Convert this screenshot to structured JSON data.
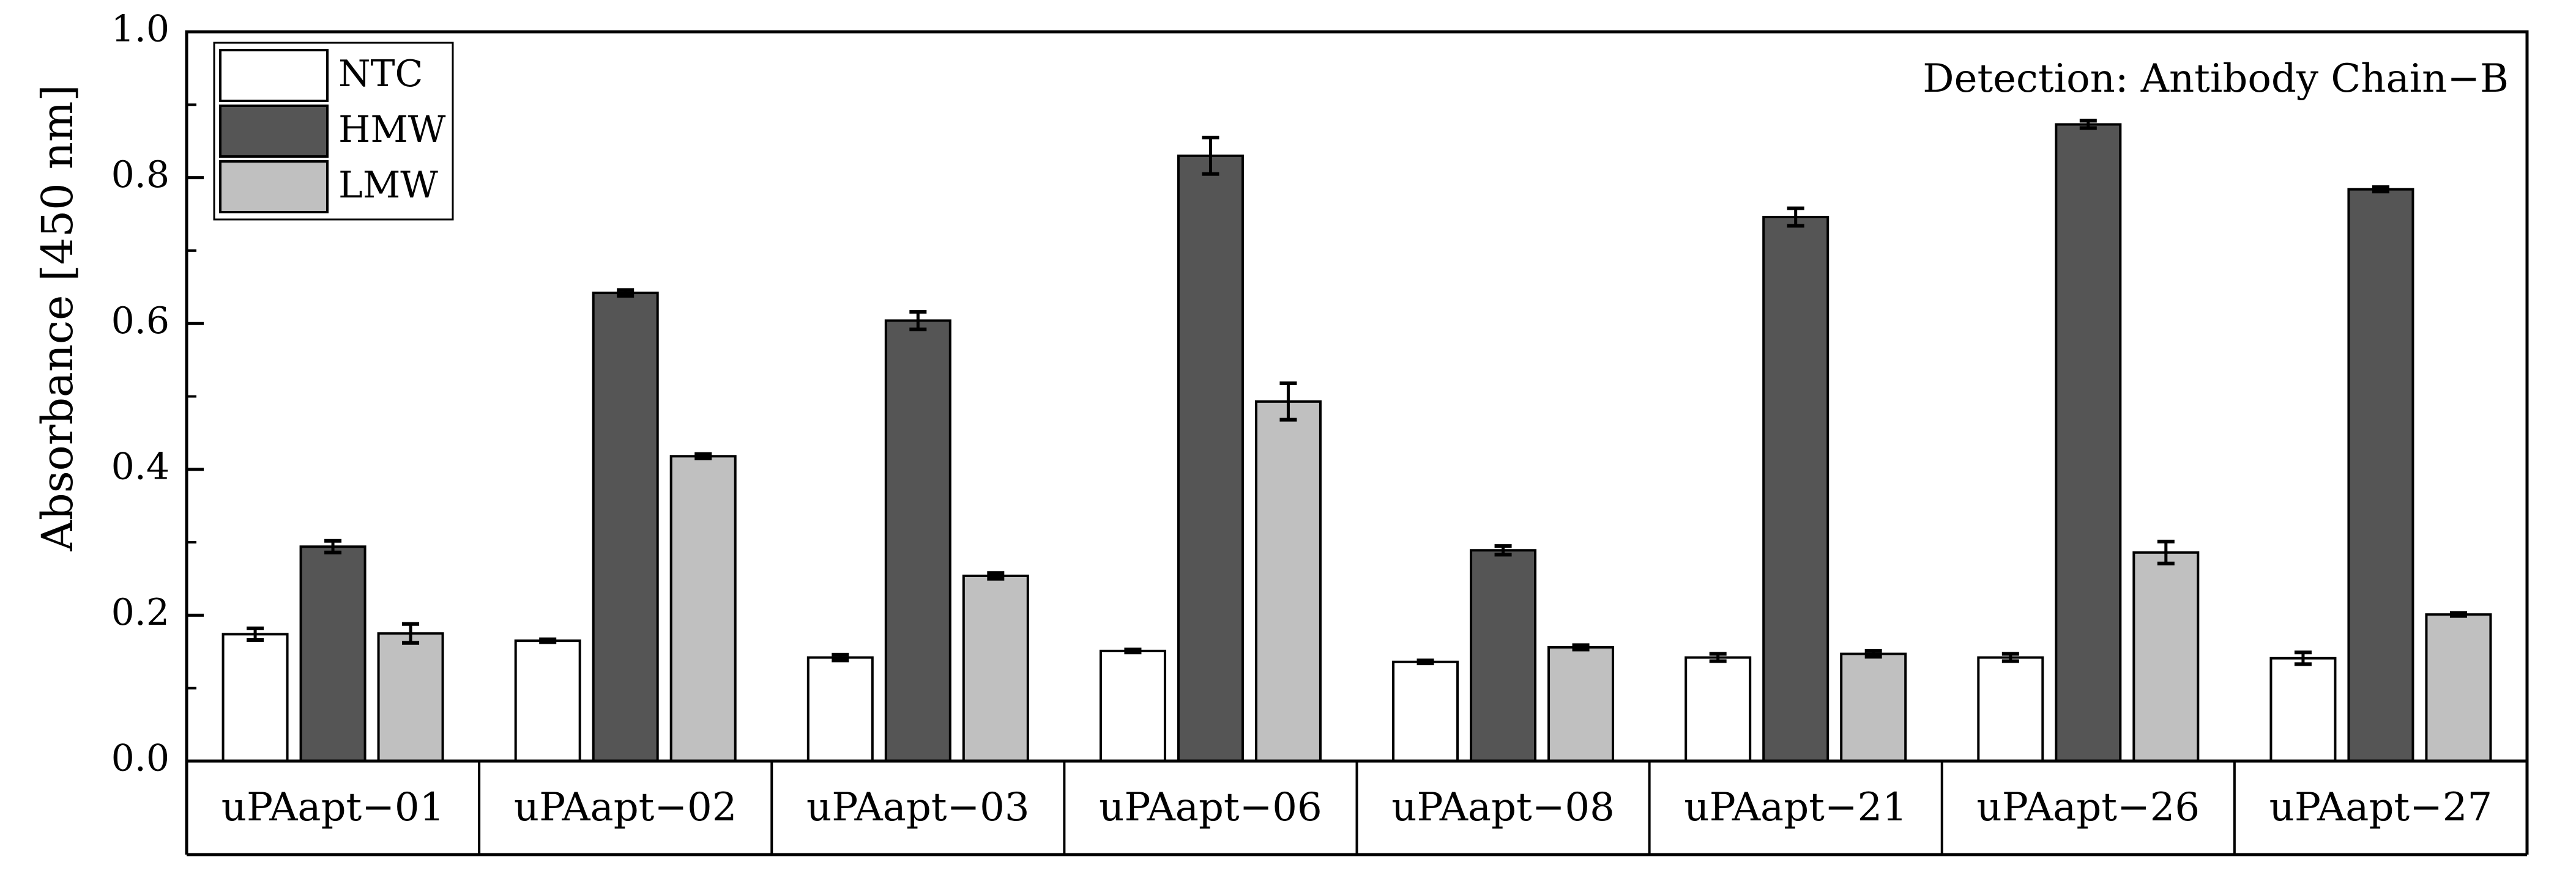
{
  "chart_data": {
    "type": "bar",
    "annotation": "Detection: Antibody Chain−B",
    "xlabel": "",
    "ylabel": "Absorbance [450 nm]",
    "ylim": [
      0,
      1.0
    ],
    "yticks": [
      "0.0",
      "0.2",
      "0.4",
      "0.6",
      "0.8",
      "1.0"
    ],
    "grid": false,
    "legend_position": "top-left",
    "categories": [
      "uPAapt−01",
      "uPAapt−02",
      "uPAapt−03",
      "uPAapt−06",
      "uPAapt−08",
      "uPAapt−21",
      "uPAapt−26",
      "uPAapt−27"
    ],
    "series": [
      {
        "name": "NTC",
        "color": "#ffffff",
        "values": [
          0.174,
          0.165,
          0.142,
          0.151,
          0.136,
          0.142,
          0.142,
          0.141
        ],
        "errors": [
          0.008,
          0.002,
          0.004,
          0.002,
          0.002,
          0.005,
          0.005,
          0.008
        ]
      },
      {
        "name": "HMW",
        "color": "#555555",
        "values": [
          0.294,
          0.642,
          0.604,
          0.83,
          0.289,
          0.746,
          0.873,
          0.784
        ],
        "errors": [
          0.008,
          0.004,
          0.012,
          0.025,
          0.006,
          0.012,
          0.005,
          0.003
        ]
      },
      {
        "name": "LMW",
        "color": "#c0c0c0",
        "values": [
          0.175,
          0.418,
          0.254,
          0.493,
          0.156,
          0.147,
          0.286,
          0.201
        ],
        "errors": [
          0.013,
          0.003,
          0.004,
          0.025,
          0.003,
          0.004,
          0.015,
          0.002
        ]
      }
    ]
  }
}
